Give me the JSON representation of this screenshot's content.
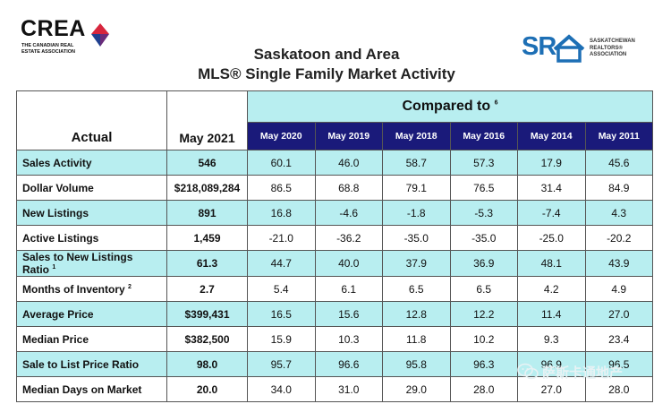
{
  "crea_logo": {
    "word": "CREA",
    "subtitle": "THE CANADIAN REAL\nESTATE ASSOCIATION"
  },
  "sra_logo": {
    "letters": "SR",
    "text_line1": "SASKATCHEWAN",
    "text_line2": "REALTORS®",
    "text_line3": "ASSOCIATION"
  },
  "title": {
    "line1": "Saskatoon and Area",
    "line2": "MLS® Single Family Market Activity"
  },
  "table": {
    "header_actual": "Actual",
    "header_current": "May 2021",
    "header_compared": "Compared to",
    "header_compared_sup": "6",
    "comparison_years": [
      "May 2020",
      "May 2019",
      "May 2018",
      "May 2016",
      "May 2014",
      "May 2011"
    ],
    "rows": [
      {
        "label": "Sales Activity",
        "sup": "",
        "actual": "546",
        "values": [
          "60.1",
          "46.0",
          "58.7",
          "57.3",
          "17.9",
          "45.6"
        ]
      },
      {
        "label": "Dollar Volume",
        "sup": "",
        "actual": "$218,089,284",
        "values": [
          "86.5",
          "68.8",
          "79.1",
          "76.5",
          "31.4",
          "84.9"
        ]
      },
      {
        "label": "New Listings",
        "sup": "",
        "actual": "891",
        "values": [
          "16.8",
          "-4.6",
          "-1.8",
          "-5.3",
          "-7.4",
          "4.3"
        ]
      },
      {
        "label": "Active Listings",
        "sup": "",
        "actual": "1,459",
        "values": [
          "-21.0",
          "-36.2",
          "-35.0",
          "-35.0",
          "-25.0",
          "-20.2"
        ]
      },
      {
        "label": "Sales to New Listings Ratio",
        "sup": "1",
        "actual": "61.3",
        "values": [
          "44.7",
          "40.0",
          "37.9",
          "36.9",
          "48.1",
          "43.9"
        ]
      },
      {
        "label": "Months of Inventory",
        "sup": "2",
        "actual": "2.7",
        "values": [
          "5.4",
          "6.1",
          "6.5",
          "6.5",
          "4.2",
          "4.9"
        ]
      },
      {
        "label": "Average Price",
        "sup": "",
        "actual": "$399,431",
        "values": [
          "16.5",
          "15.6",
          "12.8",
          "12.2",
          "11.4",
          "27.0"
        ]
      },
      {
        "label": "Median Price",
        "sup": "",
        "actual": "$382,500",
        "values": [
          "15.9",
          "10.3",
          "11.8",
          "10.2",
          "9.3",
          "23.4"
        ]
      },
      {
        "label": "Sale to List Price Ratio",
        "sup": "",
        "actual": "98.0",
        "values": [
          "95.7",
          "96.6",
          "95.8",
          "96.3",
          "96.9",
          "96.5"
        ]
      },
      {
        "label": "Median Days on Market",
        "sup": "",
        "actual": "20.0",
        "values": [
          "34.0",
          "31.0",
          "29.0",
          "28.0",
          "27.0",
          "28.0"
        ]
      }
    ]
  },
  "watermark": {
    "text": "萨斯卡通地产",
    "icon": "wechat-icon"
  },
  "colors": {
    "row_shade": "#b8eef0",
    "year_header_bg": "#1a1a7a",
    "sra_blue": "#1d6fb5",
    "crea_red": "#d7263d",
    "crea_blue": "#1f3f8f"
  }
}
